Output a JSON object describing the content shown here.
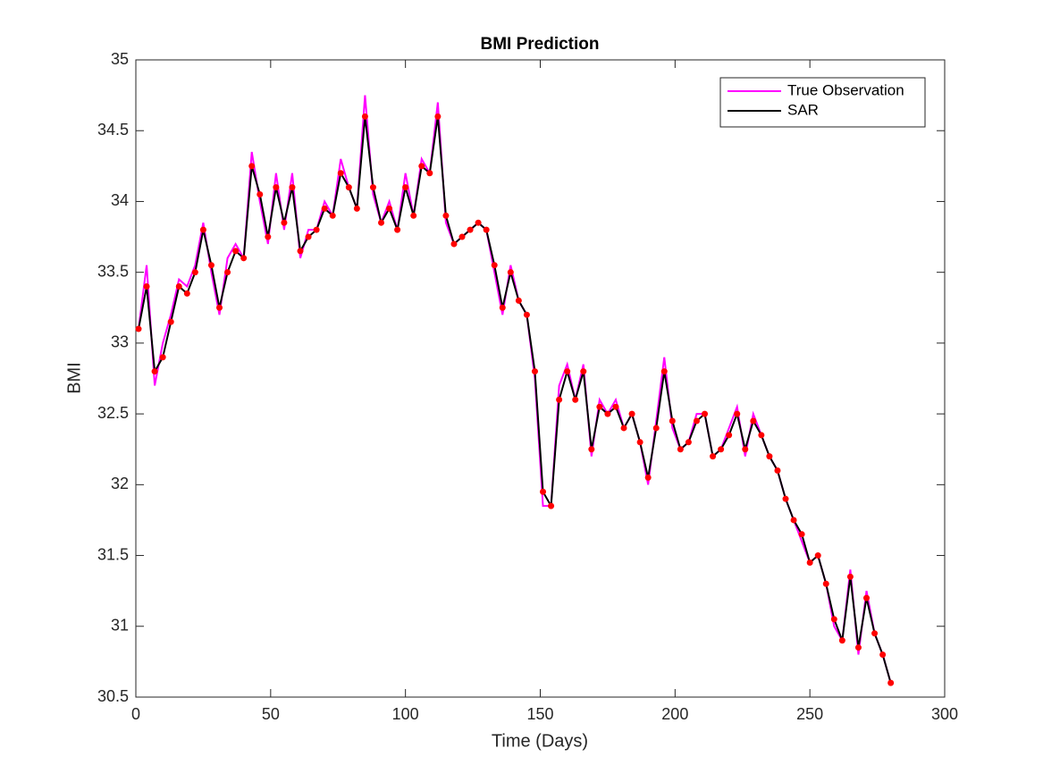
{
  "chart_data": {
    "type": "line",
    "title": "BMI Prediction",
    "x_label": "Time (Days)",
    "y_label": "BMI",
    "x": [
      1,
      4,
      7,
      10,
      13,
      16,
      19,
      22,
      25,
      28,
      31,
      34,
      37,
      40,
      43,
      46,
      49,
      52,
      55,
      58,
      61,
      64,
      67,
      70,
      73,
      76,
      79,
      82,
      85,
      88,
      91,
      94,
      97,
      100,
      103,
      106,
      109,
      112,
      115,
      118,
      121,
      124,
      127,
      130,
      133,
      136,
      139,
      142,
      145,
      148,
      151,
      154,
      157,
      160,
      163,
      166,
      169,
      172,
      175,
      178,
      181,
      184,
      187,
      190,
      193,
      196,
      199,
      202,
      205,
      208,
      211,
      214,
      217,
      220,
      223,
      226,
      229,
      232,
      235,
      238,
      241,
      244,
      247,
      250,
      253,
      256,
      259,
      262,
      265,
      268,
      271,
      274,
      277,
      280
    ],
    "series": [
      {
        "name": "True Observation",
        "color": "#ff00ff",
        "values": [
          33.1,
          33.55,
          32.7,
          33.0,
          33.2,
          33.45,
          33.4,
          33.55,
          33.85,
          33.5,
          33.2,
          33.6,
          33.7,
          33.6,
          34.35,
          34.0,
          33.7,
          34.2,
          33.8,
          34.2,
          33.6,
          33.8,
          33.8,
          34.0,
          33.9,
          34.3,
          34.1,
          33.95,
          34.75,
          34.05,
          33.85,
          34.0,
          33.8,
          34.2,
          33.9,
          34.3,
          34.2,
          34.7,
          33.85,
          33.7,
          33.75,
          33.8,
          33.85,
          33.8,
          33.5,
          33.2,
          33.55,
          33.3,
          33.2,
          32.75,
          31.85,
          31.85,
          32.7,
          32.85,
          32.6,
          32.85,
          32.2,
          32.6,
          32.5,
          32.6,
          32.4,
          32.5,
          32.3,
          32.0,
          32.45,
          32.9,
          32.4,
          32.25,
          32.3,
          32.5,
          32.5,
          32.2,
          32.25,
          32.4,
          32.55,
          32.2,
          32.5,
          32.35,
          32.2,
          32.1,
          31.9,
          31.75,
          31.6,
          31.45,
          31.5,
          31.3,
          31.0,
          30.9,
          31.4,
          30.8,
          31.25,
          30.95,
          30.8,
          30.6
        ]
      },
      {
        "name": "SAR",
        "color": "#000000",
        "marker_color": "#ff0000",
        "values": [
          33.1,
          33.4,
          32.8,
          32.9,
          33.15,
          33.4,
          33.35,
          33.5,
          33.8,
          33.55,
          33.25,
          33.5,
          33.65,
          33.6,
          34.25,
          34.05,
          33.75,
          34.1,
          33.85,
          34.1,
          33.65,
          33.75,
          33.8,
          33.95,
          33.9,
          34.2,
          34.1,
          33.95,
          34.6,
          34.1,
          33.85,
          33.95,
          33.8,
          34.1,
          33.9,
          34.25,
          34.2,
          34.6,
          33.9,
          33.7,
          33.75,
          33.8,
          33.85,
          33.8,
          33.55,
          33.25,
          33.5,
          33.3,
          33.2,
          32.8,
          31.95,
          31.85,
          32.6,
          32.8,
          32.6,
          32.8,
          32.25,
          32.55,
          32.5,
          32.55,
          32.4,
          32.5,
          32.3,
          32.05,
          32.4,
          32.8,
          32.45,
          32.25,
          32.3,
          32.45,
          32.5,
          32.2,
          32.25,
          32.35,
          32.5,
          32.25,
          32.45,
          32.35,
          32.2,
          32.1,
          31.9,
          31.75,
          31.65,
          31.45,
          31.5,
          31.3,
          31.05,
          30.9,
          31.35,
          30.85,
          31.2,
          30.95,
          30.8,
          30.6
        ]
      }
    ],
    "xlim": [
      0,
      300
    ],
    "xticks": [
      0,
      50,
      100,
      150,
      200,
      250,
      300
    ],
    "ylim": [
      30.5,
      35
    ],
    "yticks": [
      30.5,
      31,
      31.5,
      32,
      32.5,
      33,
      33.5,
      34,
      34.5,
      35
    ],
    "legend": "upper right"
  }
}
